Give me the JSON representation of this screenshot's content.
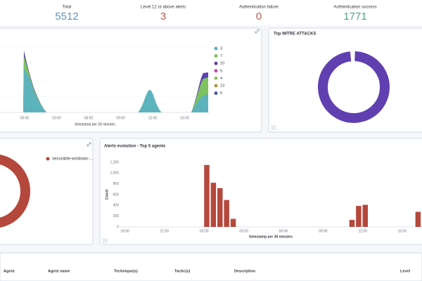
{
  "stats": [
    {
      "label": "Total",
      "value": "5512",
      "color": "#6092c0"
    },
    {
      "label": "Level 12 or above alerts",
      "value": "3",
      "color": "#bd5a4e"
    },
    {
      "label": "Authentication failure",
      "value": "0",
      "color": "#bd5a4e"
    },
    {
      "label": "Authentication success",
      "value": "1771",
      "color": "#54a08a"
    }
  ],
  "alerts_area": {
    "x_ticks": [
      "00:00",
      "03:00",
      "06:00",
      "09:00",
      "12:00",
      "15:00"
    ],
    "x_label": "timestamp per 30 minutes",
    "legend": [
      {
        "name": "3",
        "color": "#5cb3bd"
      },
      {
        "name": "7",
        "color": "#7cc25e"
      },
      {
        "name": "10",
        "color": "#6040b0"
      },
      {
        "name": "5",
        "color": "#c04fbd"
      },
      {
        "name": "4",
        "color": "#8ccc5a"
      },
      {
        "name": "13",
        "color": "#a99a44"
      },
      {
        "name": "6",
        "color": "#4a5ab0"
      }
    ]
  },
  "mitre": {
    "title": "Top MITRE ATT&CKS"
  },
  "agents": {
    "legend": "securable-windows-..."
  },
  "chart_data": {
    "type": "bar",
    "title": "Alerts evolution - Top 5 agents",
    "xlabel": "timestamp per 30 minutes",
    "ylabel": "Count",
    "color": "#b5483c",
    "x": [
      24,
      24.5,
      25,
      25.5,
      26,
      35,
      35.5,
      36,
      40
    ],
    "values": [
      1150,
      820,
      720,
      500,
      150,
      130,
      390,
      410,
      280
    ],
    "xlim": [
      17.7,
      40.5
    ],
    "xticks": [
      {
        "value": 18,
        "label": "18:00"
      },
      {
        "value": 21,
        "label": "21:00"
      },
      {
        "value": 24,
        "label": "00:00"
      },
      {
        "value": 27,
        "label": "03:00"
      },
      {
        "value": 30,
        "label": "06:00"
      },
      {
        "value": 33,
        "label": "09:00"
      },
      {
        "value": 36,
        "label": "12:00"
      },
      {
        "value": 39,
        "label": "15:00"
      }
    ],
    "ylim": [
      0,
      1200
    ],
    "yticks": [
      0,
      200,
      400,
      600,
      800,
      {
        "value": 1000,
        "label": "1,000"
      },
      {
        "value": 1200,
        "label": "1,200"
      }
    ],
    "grid": false
  },
  "table": {
    "columns": [
      "Agent",
      "Agent name",
      "Technique(s)",
      "Tactic(s)",
      "Description",
      "Level"
    ]
  }
}
